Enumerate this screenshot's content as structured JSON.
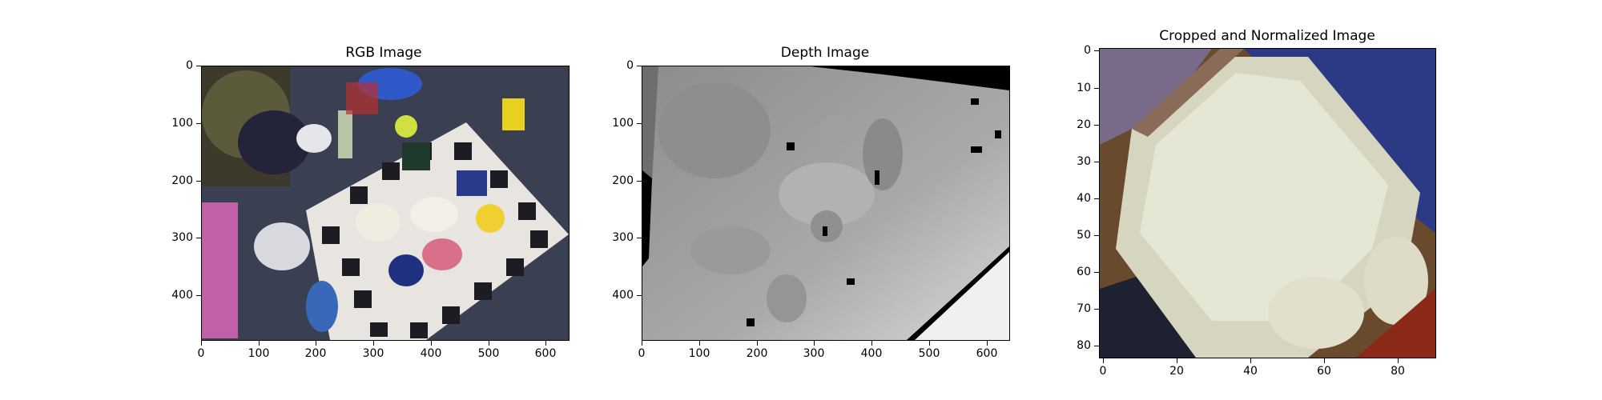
{
  "figure": {
    "panels": [
      {
        "title": "RGB Image",
        "x_ticks": [
          "0",
          "100",
          "200",
          "300",
          "400",
          "500",
          "600"
        ],
        "y_ticks": [
          "0",
          "100",
          "200",
          "300",
          "400"
        ],
        "image_desc_icon": "rgb-photo-cluttered-table-with-markers"
      },
      {
        "title": "Depth Image",
        "x_ticks": [
          "0",
          "100",
          "200",
          "300",
          "400",
          "500",
          "600"
        ],
        "y_ticks": [
          "0",
          "100",
          "200",
          "300",
          "400"
        ],
        "image_desc_icon": "grayscale-depth-map"
      },
      {
        "title": "Cropped and Normalized Image",
        "x_ticks": [
          "0",
          "20",
          "40",
          "60",
          "80"
        ],
        "y_ticks": [
          "0",
          "10",
          "20",
          "30",
          "40",
          "50",
          "60",
          "70",
          "80"
        ],
        "image_desc_icon": "cropped-egg-carton-closeup"
      }
    ]
  }
}
